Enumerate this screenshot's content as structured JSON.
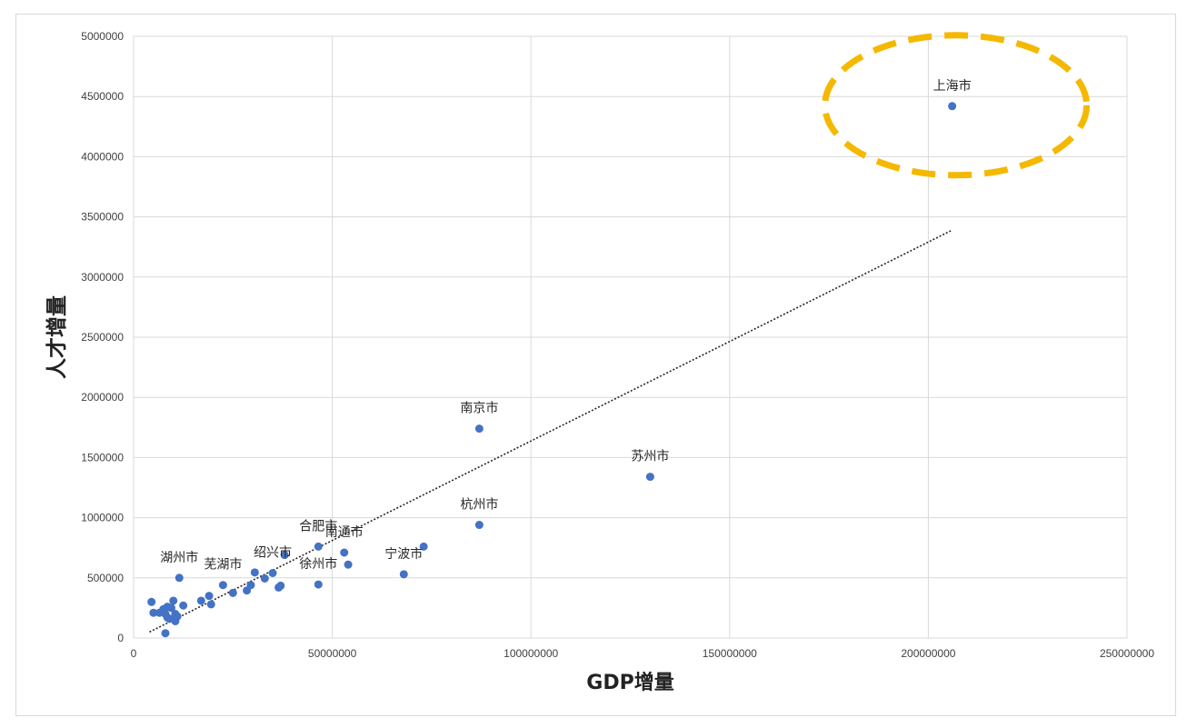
{
  "chart_data": {
    "type": "scatter",
    "title": "",
    "xlabel": "GDP增量",
    "ylabel": "人才增量",
    "xlim": [
      0,
      250000000
    ],
    "ylim": [
      0,
      5000000
    ],
    "x_ticks": [
      "0",
      "50000000",
      "100000000",
      "150000000",
      "200000000",
      "250000000"
    ],
    "y_ticks": [
      "0",
      "500000",
      "1000000",
      "1500000",
      "2000000",
      "2500000",
      "3000000",
      "3500000",
      "4000000",
      "4500000",
      "5000000"
    ],
    "grid": true,
    "trendline": {
      "style": "dotted",
      "color": "#262626",
      "from": [
        4000000,
        50000
      ],
      "to": [
        206000000,
        3390000
      ]
    },
    "highlight": {
      "shape": "ellipse",
      "style": "dashed",
      "color": "#f5b800",
      "target": "上海市"
    },
    "marker_color": "#4472c4",
    "points": [
      {
        "x": 206000000,
        "y": 4420000,
        "label": "上海市"
      },
      {
        "x": 87000000,
        "y": 1740000,
        "label": "南京市"
      },
      {
        "x": 130000000,
        "y": 1340000,
        "label": "苏州市"
      },
      {
        "x": 87000000,
        "y": 940000,
        "label": "杭州市"
      },
      {
        "x": 73000000,
        "y": 760000,
        "label": ""
      },
      {
        "x": 68000000,
        "y": 530000,
        "label": "宁波市"
      },
      {
        "x": 46500000,
        "y": 760000,
        "label": "合肥市"
      },
      {
        "x": 53000000,
        "y": 710000,
        "label": "南通市"
      },
      {
        "x": 54000000,
        "y": 610000,
        "label": ""
      },
      {
        "x": 46500000,
        "y": 445000,
        "label": "徐州市"
      },
      {
        "x": 38000000,
        "y": 690000,
        "label": ""
      },
      {
        "x": 35000000,
        "y": 540000,
        "label": "绍兴市"
      },
      {
        "x": 37000000,
        "y": 435000,
        "label": ""
      },
      {
        "x": 36500000,
        "y": 420000,
        "label": ""
      },
      {
        "x": 33000000,
        "y": 495000,
        "label": ""
      },
      {
        "x": 30500000,
        "y": 545000,
        "label": ""
      },
      {
        "x": 29500000,
        "y": 440000,
        "label": ""
      },
      {
        "x": 28500000,
        "y": 395000,
        "label": ""
      },
      {
        "x": 25000000,
        "y": 375000,
        "label": ""
      },
      {
        "x": 22500000,
        "y": 440000,
        "label": "芜湖市"
      },
      {
        "x": 19000000,
        "y": 350000,
        "label": ""
      },
      {
        "x": 19500000,
        "y": 280000,
        "label": ""
      },
      {
        "x": 17000000,
        "y": 310000,
        "label": ""
      },
      {
        "x": 11500000,
        "y": 500000,
        "label": "湖州市"
      },
      {
        "x": 12500000,
        "y": 270000,
        "label": ""
      },
      {
        "x": 10000000,
        "y": 310000,
        "label": ""
      },
      {
        "x": 9500000,
        "y": 250000,
        "label": ""
      },
      {
        "x": 10500000,
        "y": 200000,
        "label": ""
      },
      {
        "x": 11000000,
        "y": 180000,
        "label": ""
      },
      {
        "x": 10500000,
        "y": 140000,
        "label": ""
      },
      {
        "x": 8500000,
        "y": 260000,
        "label": ""
      },
      {
        "x": 8000000,
        "y": 200000,
        "label": ""
      },
      {
        "x": 9000000,
        "y": 160000,
        "label": ""
      },
      {
        "x": 7500000,
        "y": 240000,
        "label": ""
      },
      {
        "x": 6500000,
        "y": 210000,
        "label": ""
      },
      {
        "x": 5000000,
        "y": 210000,
        "label": ""
      },
      {
        "x": 4500000,
        "y": 300000,
        "label": ""
      },
      {
        "x": 8500000,
        "y": 170000,
        "label": ""
      },
      {
        "x": 8000000,
        "y": 40000,
        "label": ""
      }
    ]
  }
}
